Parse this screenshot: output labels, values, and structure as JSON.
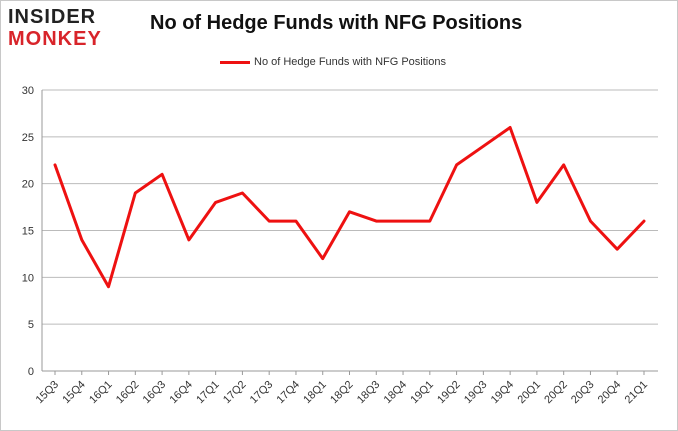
{
  "logo": {
    "line1": "INSIDER",
    "line2": "MONKEY"
  },
  "chart_data": {
    "type": "line",
    "title": "No of Hedge Funds with NFG Positions",
    "categories": [
      "15Q3",
      "15Q4",
      "16Q1",
      "16Q2",
      "16Q3",
      "16Q4",
      "17Q1",
      "17Q2",
      "17Q3",
      "17Q4",
      "18Q1",
      "18Q2",
      "18Q3",
      "18Q4",
      "19Q1",
      "19Q2",
      "19Q3",
      "19Q4",
      "20Q1",
      "20Q2",
      "20Q3",
      "20Q4",
      "21Q1"
    ],
    "series": [
      {
        "name": "No of Hedge Funds with NFG Positions",
        "values": [
          22,
          14,
          9,
          19,
          21,
          14,
          18,
          19,
          16,
          16,
          12,
          17,
          16,
          16,
          16,
          22,
          24,
          26,
          18,
          22,
          16,
          13,
          16
        ]
      }
    ],
    "ylim": [
      0,
      30
    ],
    "yticks": [
      0,
      5,
      10,
      15,
      20,
      25,
      30
    ],
    "grid": true,
    "legend": "top-center",
    "line_color": "#ee1111",
    "grid_color": "#bbbbbb"
  }
}
